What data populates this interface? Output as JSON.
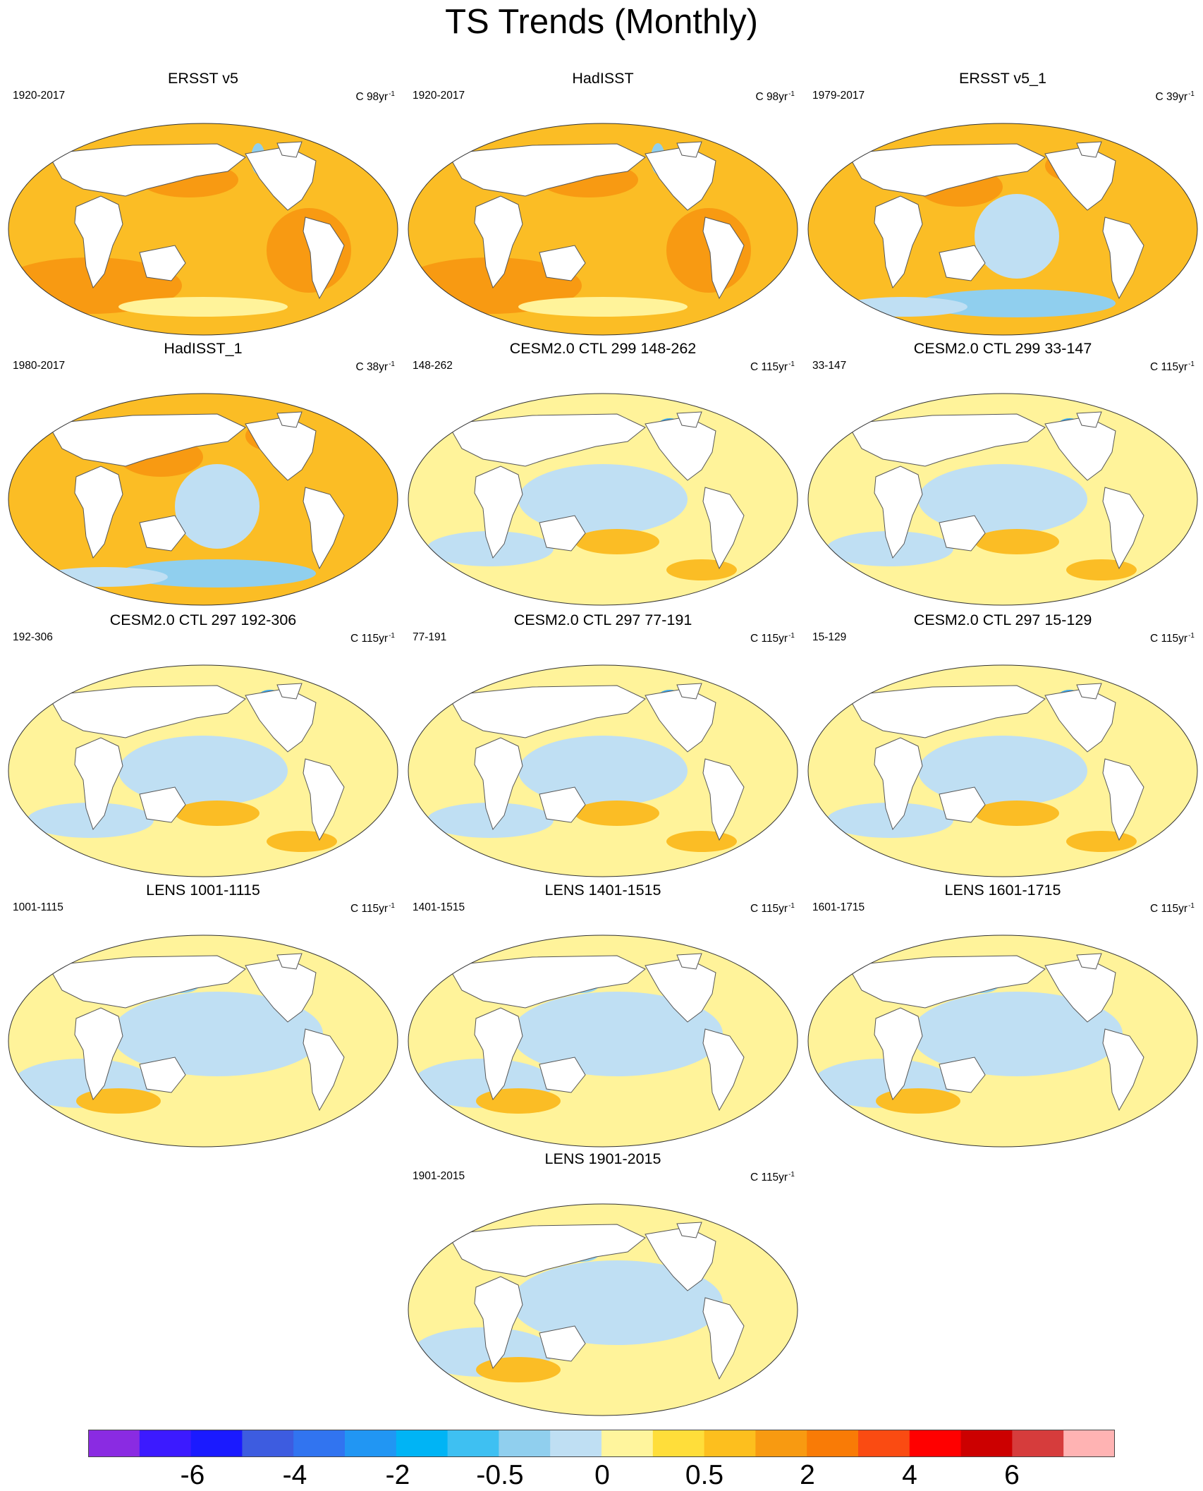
{
  "title": "TS Trends (Monthly)",
  "panels": [
    {
      "title": "ERSST v5",
      "period": "1920-2017",
      "unit": "C 98yr",
      "exp": "-1",
      "pattern": "warm"
    },
    {
      "title": "HadISST",
      "period": "1920-2017",
      "unit": "C 98yr",
      "exp": "-1",
      "pattern": "warm"
    },
    {
      "title": "ERSST v5_1",
      "period": "1979-2017",
      "unit": "C 39yr",
      "exp": "-1",
      "pattern": "recent"
    },
    {
      "title": "HadISST_1",
      "period": "1980-2017",
      "unit": "C 38yr",
      "exp": "-1",
      "pattern": "recent"
    },
    {
      "title": "CESM2.0 CTL 299 148-262",
      "period": "148-262",
      "unit": "C 115yr",
      "exp": "-1",
      "pattern": "ctl"
    },
    {
      "title": "CESM2.0 CTL 299 33-147",
      "period": "33-147",
      "unit": "C 115yr",
      "exp": "-1",
      "pattern": "ctl"
    },
    {
      "title": "CESM2.0 CTL 297 192-306",
      "period": "192-306",
      "unit": "C 115yr",
      "exp": "-1",
      "pattern": "ctl"
    },
    {
      "title": "CESM2.0 CTL 297 77-191",
      "period": "77-191",
      "unit": "C 115yr",
      "exp": "-1",
      "pattern": "ctl"
    },
    {
      "title": "CESM2.0 CTL 297 15-129",
      "period": "15-129",
      "unit": "C 115yr",
      "exp": "-1",
      "pattern": "ctl"
    },
    {
      "title": "LENS 1001-1115",
      "period": "1001-1115",
      "unit": "C 115yr",
      "exp": "-1",
      "pattern": "lens"
    },
    {
      "title": "LENS 1401-1515",
      "period": "1401-1515",
      "unit": "C 115yr",
      "exp": "-1",
      "pattern": "lens"
    },
    {
      "title": "LENS 1601-1715",
      "period": "1601-1715",
      "unit": "C 115yr",
      "exp": "-1",
      "pattern": "lens"
    },
    {
      "title": "LENS 1901-2015",
      "period": "1901-2015",
      "unit": "C 115yr",
      "exp": "-1",
      "pattern": "lens"
    }
  ],
  "colorbar": {
    "colors": [
      "#8a2be2",
      "#3c1aff",
      "#1a1aff",
      "#3d5ce0",
      "#3174f0",
      "#2196f3",
      "#00b4f5",
      "#3ec0f2",
      "#90cfee",
      "#bfdff3",
      "#fff59d",
      "#ffde3a",
      "#fdbf1e",
      "#f89a11",
      "#f97b06",
      "#fa4b12",
      "#ff0000",
      "#cc0000",
      "#d63c3c",
      "#ffb3b3"
    ],
    "labels": [
      "-6",
      "-4",
      "-2",
      "-0.5",
      "0",
      "0.5",
      "2",
      "4",
      "6"
    ]
  },
  "palette": {
    "ocean_orange": "#fbbd25",
    "ocean_dark_orange": "#f89a12",
    "ocean_yellow": "#fff39a",
    "ocean_light_blue": "#bfdff3",
    "ocean_blue": "#90cfee",
    "ocean_strong_blue": "#3ba7ef",
    "land": "#ffffff"
  }
}
